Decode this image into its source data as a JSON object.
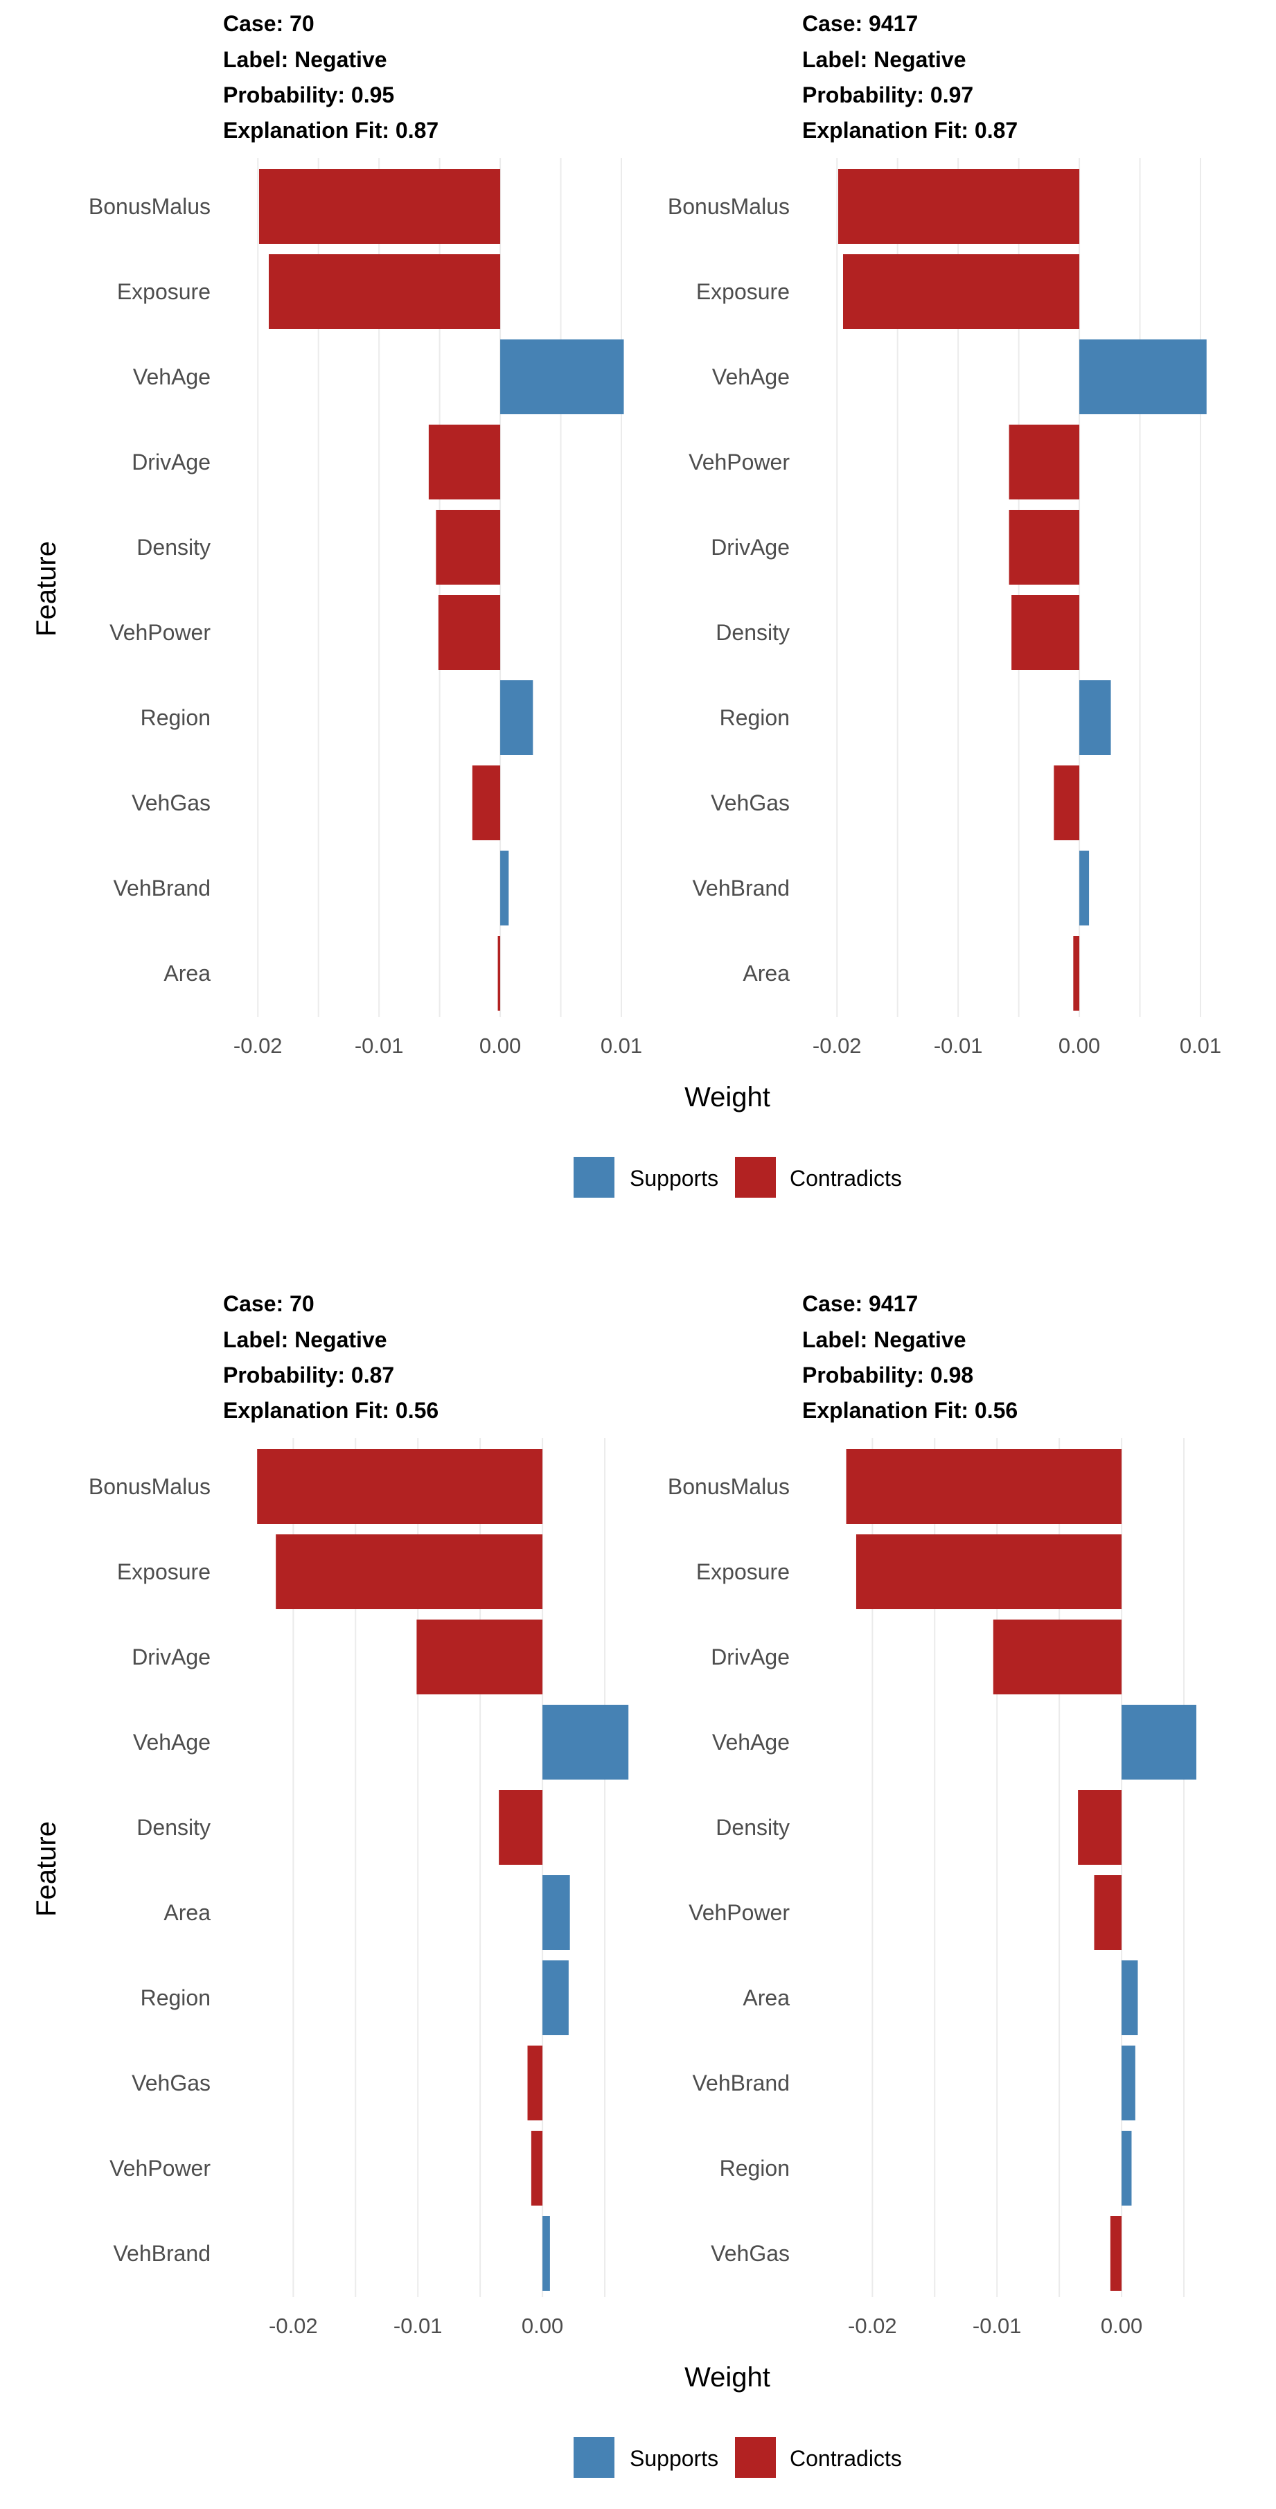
{
  "legend": {
    "supports_label": "Supports",
    "contradicts_label": "Contradicts",
    "supports_color": "#4682b4",
    "contradicts_color": "#b22222"
  },
  "chart_data": [
    {
      "type": "bar",
      "orientation": "horizontal",
      "panels": [
        {
          "header": [
            "Case: 70",
            "Label: Negative",
            "Probability: 0.95",
            "Explanation Fit: 0.87"
          ],
          "features": [
            "BonusMalus",
            "Exposure",
            "VehAge",
            "DrivAge",
            "Density",
            "VehPower",
            "Region",
            "VehGas",
            "VehBrand",
            "Area"
          ],
          "values": [
            -0.0199,
            -0.0191,
            0.0102,
            -0.0059,
            -0.0053,
            -0.0051,
            0.0027,
            -0.0023,
            0.0007,
            -0.0002
          ],
          "xlim": [
            -0.0215,
            0.0112
          ],
          "xticks": [
            -0.02,
            -0.01,
            0.0,
            0.01
          ],
          "xtick_labels": [
            "-0.02",
            "-0.01",
            "0.00",
            "0.01"
          ]
        },
        {
          "header": [
            "Case: 9417",
            "Label: Negative",
            "Probability: 0.97",
            "Explanation Fit: 0.87"
          ],
          "features": [
            "BonusMalus",
            "Exposure",
            "VehAge",
            "VehPower",
            "DrivAge",
            "Density",
            "Region",
            "VehGas",
            "VehBrand",
            "Area"
          ],
          "values": [
            -0.0199,
            -0.0195,
            0.0105,
            -0.0058,
            -0.0058,
            -0.0056,
            0.0026,
            -0.0021,
            0.0008,
            -0.0005
          ],
          "xlim": [
            -0.0215,
            0.0112
          ],
          "xticks": [
            -0.02,
            -0.01,
            0.0,
            0.01
          ],
          "xtick_labels": [
            "-0.02",
            "-0.01",
            "0.00",
            "0.01"
          ]
        }
      ],
      "xlabel": "Weight",
      "ylabel": "Feature",
      "legend": [
        "Supports",
        "Contradicts"
      ]
    },
    {
      "type": "bar",
      "orientation": "horizontal",
      "panels": [
        {
          "header": [
            "Case: 70",
            "Label: Negative",
            "Probability: 0.87",
            "Explanation Fit: 0.56"
          ],
          "features": [
            "BonusMalus",
            "Exposure",
            "DrivAge",
            "VehAge",
            "Density",
            "Area",
            "Region",
            "VehGas",
            "VehPower",
            "VehBrand"
          ],
          "values": [
            -0.0229,
            -0.0214,
            -0.0101,
            0.0069,
            -0.0035,
            0.0022,
            0.0021,
            -0.0012,
            -0.0009,
            0.0006
          ],
          "xlim": [
            -0.0243,
            0.0075
          ],
          "xticks": [
            -0.02,
            -0.01,
            0.0
          ],
          "xtick_labels": [
            "-0.02",
            "-0.01",
            "0.00"
          ]
        },
        {
          "header": [
            "Case: 9417",
            "Label: Negative",
            "Probability: 0.98",
            "Explanation Fit: 0.56"
          ],
          "features": [
            "BonusMalus",
            "Exposure",
            "DrivAge",
            "VehAge",
            "Density",
            "VehPower",
            "Area",
            "VehBrand",
            "Region",
            "VehGas"
          ],
          "values": [
            -0.0221,
            -0.0213,
            -0.0103,
            0.006,
            -0.0035,
            -0.0022,
            0.0013,
            0.0011,
            0.0008,
            -0.0009
          ],
          "xlim": [
            -0.0243,
            0.0075
          ],
          "xticks": [
            -0.02,
            -0.01,
            0.0
          ],
          "xtick_labels": [
            "-0.02",
            "-0.01",
            "0.00"
          ]
        }
      ],
      "xlabel": "Weight",
      "ylabel": "Feature",
      "legend": [
        "Supports",
        "Contradicts"
      ]
    }
  ]
}
